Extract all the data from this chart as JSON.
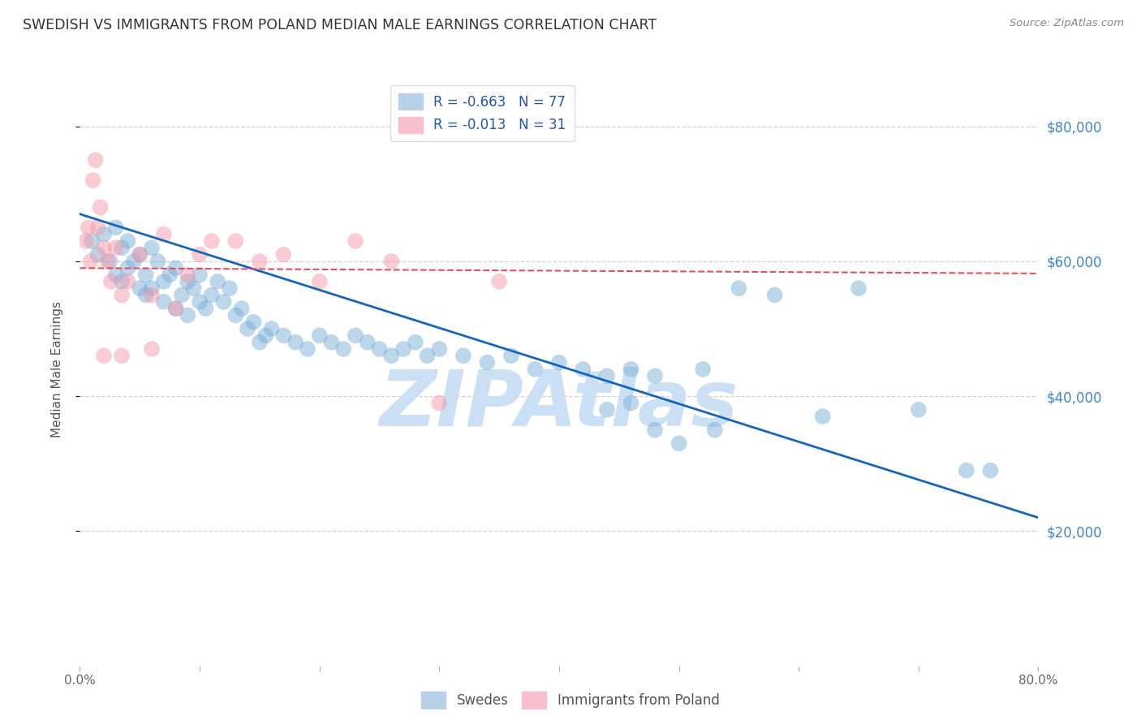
{
  "title": "SWEDISH VS IMMIGRANTS FROM POLAND MEDIAN MALE EARNINGS CORRELATION CHART",
  "source": "Source: ZipAtlas.com",
  "ylabel": "Median Male Earnings",
  "y_ticks": [
    20000,
    40000,
    60000,
    80000
  ],
  "y_tick_labels": [
    "$20,000",
    "$40,000",
    "$60,000",
    "$80,000"
  ],
  "xlim": [
    0.0,
    80.0
  ],
  "ylim": [
    0,
    88000
  ],
  "footer_labels": [
    "Swedes",
    "Immigrants from Poland"
  ],
  "watermark": "ZIPAtlas",
  "blue_scatter_x": [
    1.0,
    1.5,
    2.0,
    2.5,
    3.0,
    3.0,
    3.5,
    3.5,
    4.0,
    4.0,
    4.5,
    5.0,
    5.0,
    5.5,
    5.5,
    6.0,
    6.0,
    6.5,
    7.0,
    7.0,
    7.5,
    8.0,
    8.0,
    8.5,
    9.0,
    9.0,
    9.5,
    10.0,
    10.0,
    10.5,
    11.0,
    11.5,
    12.0,
    12.5,
    13.0,
    13.5,
    14.0,
    14.5,
    15.0,
    15.5,
    16.0,
    17.0,
    18.0,
    19.0,
    20.0,
    21.0,
    22.0,
    23.0,
    24.0,
    25.0,
    26.0,
    27.0,
    28.0,
    29.0,
    30.0,
    32.0,
    34.0,
    36.0,
    38.0,
    40.0,
    42.0,
    44.0,
    46.0,
    48.0,
    52.0,
    55.0,
    58.0,
    62.0,
    65.0,
    70.0,
    74.0,
    76.0,
    48.0,
    50.0,
    53.0,
    44.0,
    46.0
  ],
  "blue_scatter_y": [
    63000,
    61000,
    64000,
    60000,
    65000,
    58000,
    62000,
    57000,
    63000,
    59000,
    60000,
    61000,
    56000,
    58000,
    55000,
    62000,
    56000,
    60000,
    57000,
    54000,
    58000,
    59000,
    53000,
    55000,
    57000,
    52000,
    56000,
    58000,
    54000,
    53000,
    55000,
    57000,
    54000,
    56000,
    52000,
    53000,
    50000,
    51000,
    48000,
    49000,
    50000,
    49000,
    48000,
    47000,
    49000,
    48000,
    47000,
    49000,
    48000,
    47000,
    46000,
    47000,
    48000,
    46000,
    47000,
    46000,
    45000,
    46000,
    44000,
    45000,
    44000,
    43000,
    44000,
    43000,
    44000,
    56000,
    55000,
    37000,
    56000,
    38000,
    29000,
    29000,
    35000,
    33000,
    35000,
    38000,
    39000
  ],
  "pink_scatter_x": [
    0.5,
    0.7,
    0.9,
    1.1,
    1.3,
    1.5,
    1.7,
    2.0,
    2.3,
    2.6,
    3.0,
    3.5,
    4.0,
    5.0,
    6.0,
    7.0,
    8.0,
    9.0,
    10.0,
    11.0,
    13.0,
    15.0,
    17.0,
    20.0,
    23.0,
    26.0,
    30.0,
    35.0,
    2.0,
    3.5,
    6.0
  ],
  "pink_scatter_y": [
    63000,
    65000,
    60000,
    72000,
    75000,
    65000,
    68000,
    62000,
    60000,
    57000,
    62000,
    55000,
    57000,
    61000,
    55000,
    64000,
    53000,
    58000,
    61000,
    63000,
    63000,
    60000,
    61000,
    57000,
    63000,
    60000,
    39000,
    57000,
    46000,
    46000,
    47000
  ],
  "blue_line_x": [
    0.0,
    80.0
  ],
  "blue_line_y": [
    67000,
    22000
  ],
  "pink_line_x": [
    0.0,
    80.0
  ],
  "pink_line_y": [
    59000,
    58200
  ],
  "title_color": "#333333",
  "blue_color": "#7aaed6",
  "pink_color": "#f49aaa",
  "blue_line_color": "#1565c0",
  "pink_line_color": "#e05060",
  "right_axis_color": "#3d85c8",
  "watermark_color": "#cce0f5",
  "background_color": "#ffffff",
  "grid_color": "#cccccc"
}
